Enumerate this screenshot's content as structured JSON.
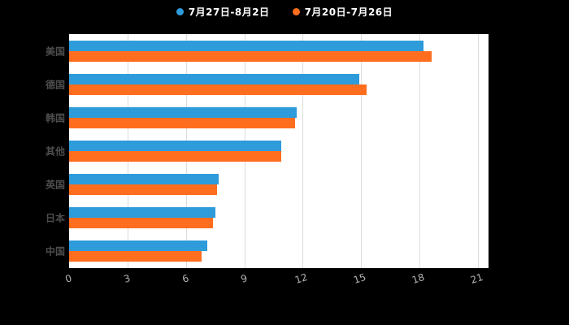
{
  "chart_data": {
    "type": "bar",
    "orientation": "horizontal",
    "title": "",
    "categories": [
      "美国",
      "德国",
      "韩国",
      "其他",
      "英国",
      "日本",
      "中国"
    ],
    "series": [
      {
        "name": "7月27日-8月2日",
        "color": "#2E9BDB",
        "values": [
          18.2,
          14.9,
          11.7,
          10.9,
          7.7,
          7.5,
          7.1
        ]
      },
      {
        "name": "7月20日-7月26日",
        "color": "#FF6E1E",
        "values": [
          18.6,
          15.3,
          11.6,
          10.9,
          7.6,
          7.4,
          6.8
        ]
      }
    ],
    "xlim": [
      0,
      21
    ],
    "xticks": [
      0,
      3,
      6,
      9,
      12,
      15,
      18,
      21
    ],
    "legend_position": "top",
    "grid": true,
    "plot_background": "#ffffff",
    "page_background": "#000000"
  }
}
